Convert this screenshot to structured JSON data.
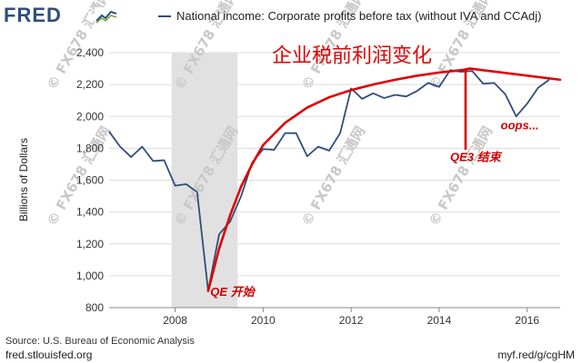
{
  "brand": {
    "logo_text": "FRED",
    "logo_icon": "fred-line-icon",
    "brand_color": "#2f4e79"
  },
  "legend": {
    "series_label": "National income: Corporate profits before tax (without IVA and CCAdj)"
  },
  "source_text": "Source: U.S. Bureau of Economic Analysis",
  "footer": {
    "left": "fred.stlouisfed.org",
    "right": "myf.red/g/cgHM"
  },
  "watermark_text": "© FX678 汇通网",
  "chart_data": {
    "type": "line",
    "title": "",
    "xlabel": "",
    "ylabel": "Billions of Dollars",
    "xlim": [
      2006.5,
      2016.75
    ],
    "ylim": [
      800,
      2400
    ],
    "x_ticks": [
      2008,
      2010,
      2012,
      2014,
      2016
    ],
    "y_ticks": [
      800,
      1000,
      1200,
      1400,
      1600,
      1800,
      2000,
      2200,
      2400
    ],
    "y_tick_labels": [
      "800",
      "1,000",
      "1,200",
      "1,400",
      "1,600",
      "1,800",
      "2,000",
      "2,200",
      "2,400"
    ],
    "grid": "horizontal",
    "legend_position": "top",
    "recession_band": [
      2007.92,
      2009.42
    ],
    "series": [
      {
        "name": "National income: Corporate profits before tax (without IVA and CCAdj)",
        "color": "#2f4e79",
        "x": [
          2006.5,
          2006.75,
          2007.0,
          2007.25,
          2007.5,
          2007.75,
          2008.0,
          2008.25,
          2008.5,
          2008.75,
          2009.0,
          2009.25,
          2009.5,
          2009.75,
          2010.0,
          2010.25,
          2010.5,
          2010.75,
          2011.0,
          2011.25,
          2011.5,
          2011.75,
          2012.0,
          2012.25,
          2012.5,
          2012.75,
          2013.0,
          2013.25,
          2013.5,
          2013.75,
          2014.0,
          2014.25,
          2014.5,
          2014.75,
          2015.0,
          2015.25,
          2015.5,
          2015.75,
          2016.0,
          2016.25,
          2016.5
        ],
        "y": [
          1905,
          1810,
          1745,
          1810,
          1720,
          1725,
          1565,
          1575,
          1525,
          905,
          1260,
          1340,
          1500,
          1710,
          1795,
          1790,
          1895,
          1895,
          1750,
          1810,
          1785,
          1895,
          2175,
          2110,
          2145,
          2115,
          2135,
          2125,
          2160,
          2210,
          2185,
          2290,
          2280,
          2285,
          2205,
          2210,
          2140,
          2000,
          2080,
          2180,
          2230
        ]
      }
    ],
    "annotations": [
      {
        "text": "企业税前利润变化",
        "x": 2010.2,
        "y": 2340,
        "kind": "title"
      },
      {
        "text": "QE 开始",
        "x": 2008.8,
        "y": 875,
        "kind": "label"
      },
      {
        "text": "QE3 结束",
        "x": 2014.25,
        "y": 1720,
        "kind": "label"
      },
      {
        "text": "oops...",
        "x": 2015.4,
        "y": 1920,
        "kind": "label"
      }
    ],
    "overlay": {
      "color": "#e00000",
      "trend_curve": [
        [
          2008.75,
          905
        ],
        [
          2009.0,
          1170
        ],
        [
          2009.25,
          1380
        ],
        [
          2009.5,
          1560
        ],
        [
          2009.75,
          1700
        ],
        [
          2010.0,
          1820
        ],
        [
          2010.5,
          1960
        ],
        [
          2011.0,
          2055
        ],
        [
          2011.5,
          2120
        ],
        [
          2012.0,
          2165
        ],
        [
          2012.5,
          2200
        ],
        [
          2013.0,
          2230
        ],
        [
          2013.5,
          2255
        ],
        [
          2014.0,
          2275
        ],
        [
          2014.5,
          2290
        ],
        [
          2014.7,
          2300
        ]
      ],
      "trend_down": [
        [
          2014.7,
          2300
        ],
        [
          2016.75,
          2230
        ]
      ],
      "qe3_marker": [
        [
          2014.6,
          2300
        ],
        [
          2014.6,
          1790
        ]
      ]
    }
  }
}
